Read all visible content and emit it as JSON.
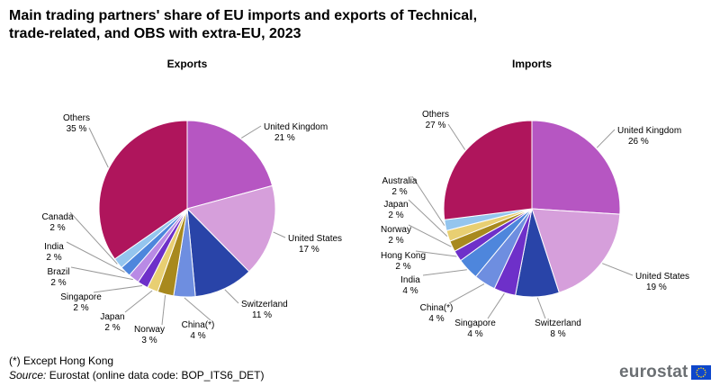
{
  "title": "Main trading partners' share of EU imports and exports of Technical, trade-related, and OBS with extra-EU, 2023",
  "footnote": "(*) Except Hong Kong",
  "source": {
    "label": "Source:",
    "text": "Eurostat (online data code: BOP_ITS6_DET)"
  },
  "logo": {
    "text": "eurostat",
    "icon": "eu-flag-icon"
  },
  "colors": {
    "United Kingdom": "#b656c2",
    "United States": "#d69fdb",
    "Switzerland": "#2944a8",
    "China(*)": "#6e8ee0",
    "Norway": "#a8891e",
    "Japan": "#e8cf72",
    "Singapore": "#6e30c9",
    "Brazil": "#b98ae5",
    "India": "#4e86dc",
    "Canada": "#94c5ee",
    "Others": "#af155c",
    "Hong Kong": "#6e30c9",
    "Australia": "#94c5ee"
  },
  "chart_data": [
    {
      "type": "pie",
      "title": "Exports",
      "slices": [
        {
          "label": "United Kingdom",
          "percent_label": "21 %",
          "value": 21
        },
        {
          "label": "United States",
          "percent_label": "17 %",
          "value": 17
        },
        {
          "label": "Switzerland",
          "percent_label": "11 %",
          "value": 11
        },
        {
          "label": "China(*)",
          "percent_label": "4 %",
          "value": 4
        },
        {
          "label": "Norway",
          "percent_label": "3 %",
          "value": 3
        },
        {
          "label": "Japan",
          "percent_label": "2 %",
          "value": 2
        },
        {
          "label": "Singapore",
          "percent_label": "2 %",
          "value": 2
        },
        {
          "label": "Brazil",
          "percent_label": "2 %",
          "value": 2
        },
        {
          "label": "India",
          "percent_label": "2 %",
          "value": 2
        },
        {
          "label": "Canada",
          "percent_label": "2 %",
          "value": 2
        },
        {
          "label": "Others",
          "percent_label": "35 %",
          "value": 35
        }
      ]
    },
    {
      "type": "pie",
      "title": "Imports",
      "slices": [
        {
          "label": "United Kingdom",
          "percent_label": "26 %",
          "value": 26
        },
        {
          "label": "United States",
          "percent_label": "19 %",
          "value": 19
        },
        {
          "label": "Switzerland",
          "percent_label": "8 %",
          "value": 8
        },
        {
          "label": "Singapore",
          "percent_label": "4 %",
          "value": 4
        },
        {
          "label": "China(*)",
          "percent_label": "4 %",
          "value": 4
        },
        {
          "label": "India",
          "percent_label": "4 %",
          "value": 4
        },
        {
          "label": "Hong Kong",
          "percent_label": "2 %",
          "value": 2
        },
        {
          "label": "Norway",
          "percent_label": "2 %",
          "value": 2
        },
        {
          "label": "Japan",
          "percent_label": "2 %",
          "value": 2
        },
        {
          "label": "Australia",
          "percent_label": "2 %",
          "value": 2
        },
        {
          "label": "Others",
          "percent_label": "27 %",
          "value": 27
        }
      ]
    }
  ]
}
